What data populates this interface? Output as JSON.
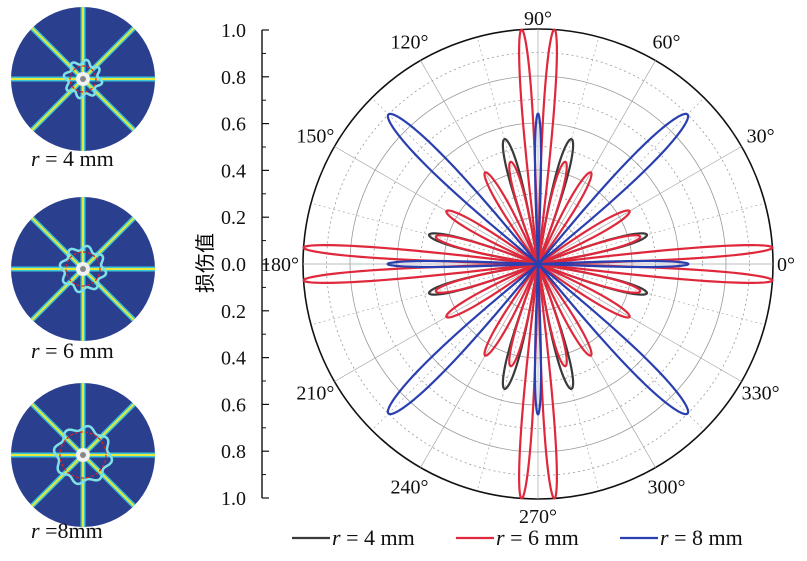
{
  "thumbnails": [
    {
      "caption_var": "r",
      "caption_rest": " = 4 mm",
      "ring_colour": "#e02020"
    },
    {
      "caption_var": "r",
      "caption_rest": " = 6 mm",
      "ring_colour": "#e02020"
    },
    {
      "caption_var": "r",
      "caption_rest": " =8mm",
      "ring_colour": "#e02020"
    }
  ],
  "chart_data": {
    "type": "polar",
    "ylabel": "损伤值",
    "radial_ticks": [
      "1.0",
      "0.8",
      "0.6",
      "0.4",
      "0.2",
      "0.0",
      "0.2",
      "0.4",
      "0.6",
      "0.8",
      "1.0"
    ],
    "rlim": [
      0,
      1.0
    ],
    "angle_ticks": [
      "0°",
      "30°",
      "60°",
      "90°",
      "120°",
      "150°",
      "180°",
      "210°",
      "240°",
      "270°",
      "300°",
      "330°"
    ],
    "angle_values_deg": [
      0,
      30,
      60,
      90,
      120,
      150,
      180,
      210,
      240,
      270,
      300,
      330
    ],
    "grid": true,
    "legend_position": "bottom",
    "series": [
      {
        "name": "r = 4 mm",
        "colour": "#3a3a3a",
        "lobes": [
          {
            "angle": 15,
            "r": 0.48
          },
          {
            "angle": 75,
            "r": 0.55
          },
          {
            "angle": 105,
            "r": 0.55
          },
          {
            "angle": 165,
            "r": 0.48
          },
          {
            "angle": 195,
            "r": 0.48
          },
          {
            "angle": 255,
            "r": 0.55
          },
          {
            "angle": 285,
            "r": 0.55
          },
          {
            "angle": 345,
            "r": 0.48
          }
        ]
      },
      {
        "name": "r = 6 mm",
        "colour": "#e0283c",
        "lobes": [
          {
            "angle": 4,
            "r": 1.0
          },
          {
            "angle": 86,
            "r": 1.0
          },
          {
            "angle": 94,
            "r": 1.0
          },
          {
            "angle": 176,
            "r": 1.0
          },
          {
            "angle": 184,
            "r": 1.0
          },
          {
            "angle": 266,
            "r": 1.0
          },
          {
            "angle": 274,
            "r": 1.0
          },
          {
            "angle": 356,
            "r": 1.0
          },
          {
            "angle": 15,
            "r": 0.45
          },
          {
            "angle": 30,
            "r": 0.45
          },
          {
            "angle": 60,
            "r": 0.45
          },
          {
            "angle": 75,
            "r": 0.45
          },
          {
            "angle": 105,
            "r": 0.45
          },
          {
            "angle": 120,
            "r": 0.45
          },
          {
            "angle": 150,
            "r": 0.45
          },
          {
            "angle": 165,
            "r": 0.45
          },
          {
            "angle": 195,
            "r": 0.45
          },
          {
            "angle": 210,
            "r": 0.45
          },
          {
            "angle": 240,
            "r": 0.45
          },
          {
            "angle": 255,
            "r": 0.45
          },
          {
            "angle": 285,
            "r": 0.45
          },
          {
            "angle": 300,
            "r": 0.45
          },
          {
            "angle": 330,
            "r": 0.45
          },
          {
            "angle": 345,
            "r": 0.45
          }
        ]
      },
      {
        "name": "r = 8 mm",
        "colour": "#2a3fb0",
        "lobes": [
          {
            "angle": 0,
            "r": 0.64
          },
          {
            "angle": 45,
            "r": 0.9
          },
          {
            "angle": 90,
            "r": 0.64
          },
          {
            "angle": 135,
            "r": 0.9
          },
          {
            "angle": 180,
            "r": 0.64
          },
          {
            "angle": 225,
            "r": 0.9
          },
          {
            "angle": 270,
            "r": 0.64
          },
          {
            "angle": 315,
            "r": 0.9
          }
        ]
      }
    ]
  }
}
